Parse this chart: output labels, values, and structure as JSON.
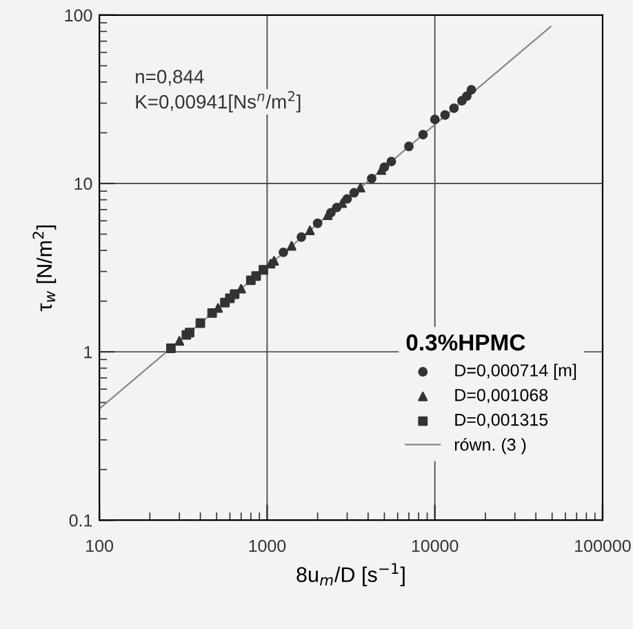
{
  "chart_data": {
    "type": "scatter",
    "xlabel": "8u$_{m}$/D [s$^{−1}$]",
    "ylabel": "τ$_{w}$ [N/m$^{2}$]",
    "legend_title": "0.3%HPMC",
    "annotations": [
      "n=0,844",
      "K=0,00941[Ns$^{n}$/m$^{2}$]"
    ],
    "log": "xy",
    "xlim": [
      100,
      100000
    ],
    "ylim": [
      0.1,
      100
    ],
    "xticks": [
      100,
      1000,
      10000,
      100000
    ],
    "yticks": [
      0.1,
      1,
      10,
      100
    ],
    "grid": true,
    "legend": "bottom right",
    "series": [
      {
        "name": "D=0,000714 [m]",
        "color": "#333333",
        "marker": "circle",
        "x": [
          1250,
          1600,
          2000,
          2400,
          2600,
          3000,
          3300,
          4200,
          5000,
          5500,
          7000,
          8500,
          10000,
          11500,
          13000,
          14500,
          15500,
          16500
        ],
        "values": [
          3.9,
          4.8,
          5.8,
          6.7,
          7.2,
          8.1,
          8.8,
          10.7,
          12.5,
          13.5,
          16.6,
          19.5,
          24,
          25.5,
          28,
          31,
          33,
          36
        ]
      },
      {
        "name": "D=0,001068",
        "color": "#333333",
        "marker": "triangle",
        "x": [
          300,
          510,
          700,
          1050,
          1100,
          1400,
          1800,
          2300,
          2800,
          3600,
          4800
        ],
        "values": [
          1.16,
          1.82,
          2.37,
          3.34,
          3.47,
          4.26,
          5.26,
          6.47,
          7.64,
          9.44,
          12.0
        ]
      },
      {
        "name": "D=0,001315",
        "color": "#333333",
        "marker": "square",
        "x": [
          267,
          330,
          345,
          400,
          470,
          560,
          600,
          640,
          800,
          860,
          950
        ],
        "values": [
          1.05,
          1.26,
          1.3,
          1.48,
          1.7,
          1.96,
          2.08,
          2.2,
          2.66,
          2.82,
          3.07
        ]
      },
      {
        "name": "równ. (3 )",
        "type": "line",
        "color": "#888888",
        "marker": "none",
        "line_style": "solid",
        "x": [
          100,
          49000
        ],
        "values": [
          0.459,
          85.5
        ]
      }
    ]
  }
}
